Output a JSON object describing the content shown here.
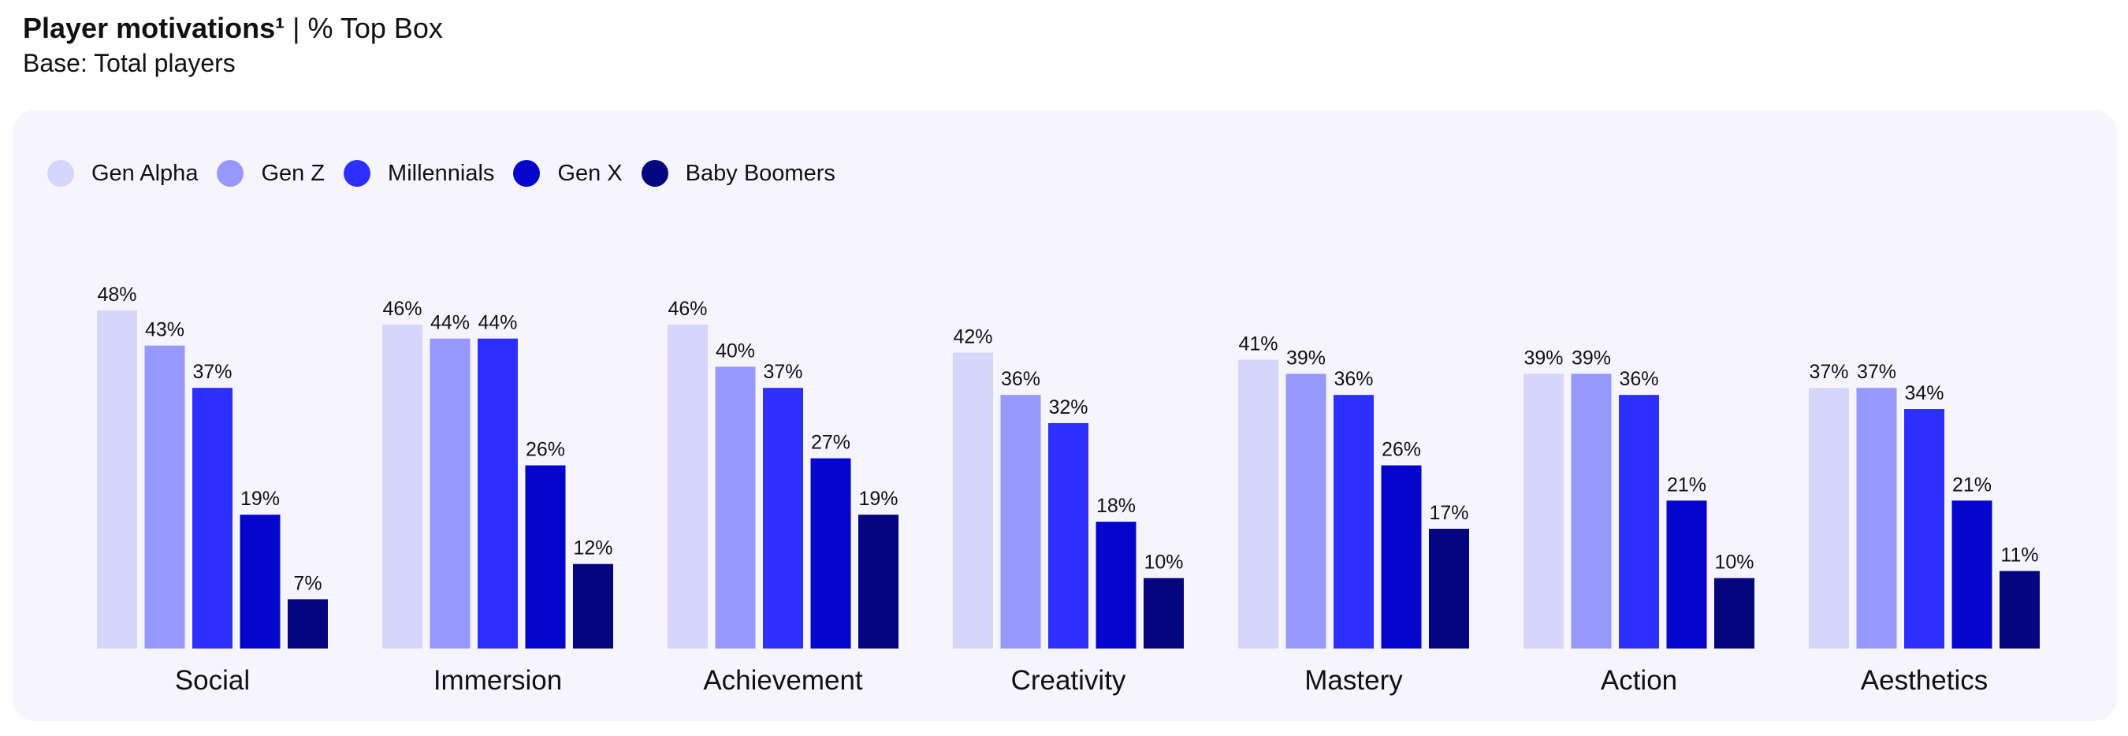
{
  "header": {
    "title": "Player motivations¹",
    "title_suffix": " | % Top Box",
    "subtitle": "Base: Total players"
  },
  "chart_data": {
    "type": "bar",
    "categories": [
      "Social",
      "Immersion",
      "Achievement",
      "Creativity",
      "Mastery",
      "Action",
      "Aesthetics"
    ],
    "series": [
      {
        "name": "Gen Alpha",
        "color": "#d6d5fc",
        "values": [
          48,
          46,
          46,
          42,
          41,
          39,
          37
        ]
      },
      {
        "name": "Gen Z",
        "color": "#9698fc",
        "values": [
          43,
          44,
          40,
          36,
          39,
          39,
          37
        ]
      },
      {
        "name": "Millennials",
        "color": "#2c2ffd",
        "values": [
          37,
          44,
          37,
          32,
          36,
          36,
          34
        ]
      },
      {
        "name": "Gen X",
        "color": "#0505cc",
        "values": [
          19,
          26,
          27,
          18,
          26,
          21,
          21
        ]
      },
      {
        "name": "Baby Boomers",
        "color": "#05057f",
        "values": [
          7,
          12,
          19,
          10,
          17,
          10,
          11
        ]
      }
    ],
    "value_suffix": "%",
    "legend_position": "top-left",
    "grid": false
  }
}
